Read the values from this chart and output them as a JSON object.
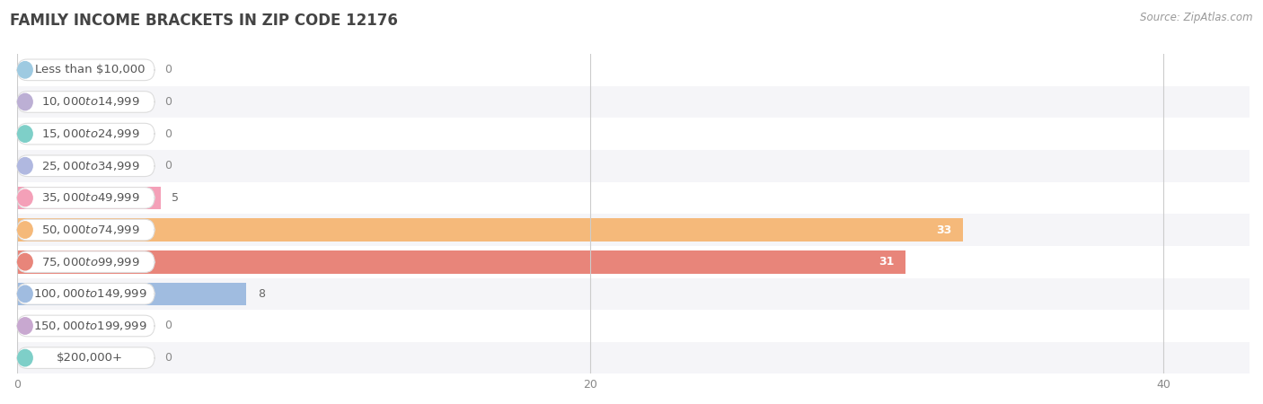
{
  "title": "FAMILY INCOME BRACKETS IN ZIP CODE 12176",
  "source": "Source: ZipAtlas.com",
  "categories": [
    "Less than $10,000",
    "$10,000 to $14,999",
    "$15,000 to $24,999",
    "$25,000 to $34,999",
    "$35,000 to $49,999",
    "$50,000 to $74,999",
    "$75,000 to $99,999",
    "$100,000 to $149,999",
    "$150,000 to $199,999",
    "$200,000+"
  ],
  "values": [
    0,
    0,
    0,
    0,
    5,
    33,
    31,
    8,
    0,
    0
  ],
  "bar_colors": [
    "#9ecae1",
    "#bcafd4",
    "#7ecfc8",
    "#b0b8e0",
    "#f4a0b8",
    "#f5b97a",
    "#e8857a",
    "#a0bce0",
    "#c8a8d0",
    "#7ecfc8"
  ],
  "label_pill_left_colors": [
    "#6baed6",
    "#9e84c0",
    "#41b8b0",
    "#8090d0",
    "#f06080",
    "#f09030",
    "#d85050",
    "#6090d0",
    "#a070b8",
    "#38b0b0"
  ],
  "row_colors": [
    "#ffffff",
    "#f5f5f8"
  ],
  "xlim": [
    0,
    43
  ],
  "xticks": [
    0,
    20,
    40
  ],
  "bg_color": "#ffffff",
  "title_fontsize": 12,
  "source_fontsize": 8.5,
  "label_fontsize": 9.5,
  "value_fontsize": 9
}
